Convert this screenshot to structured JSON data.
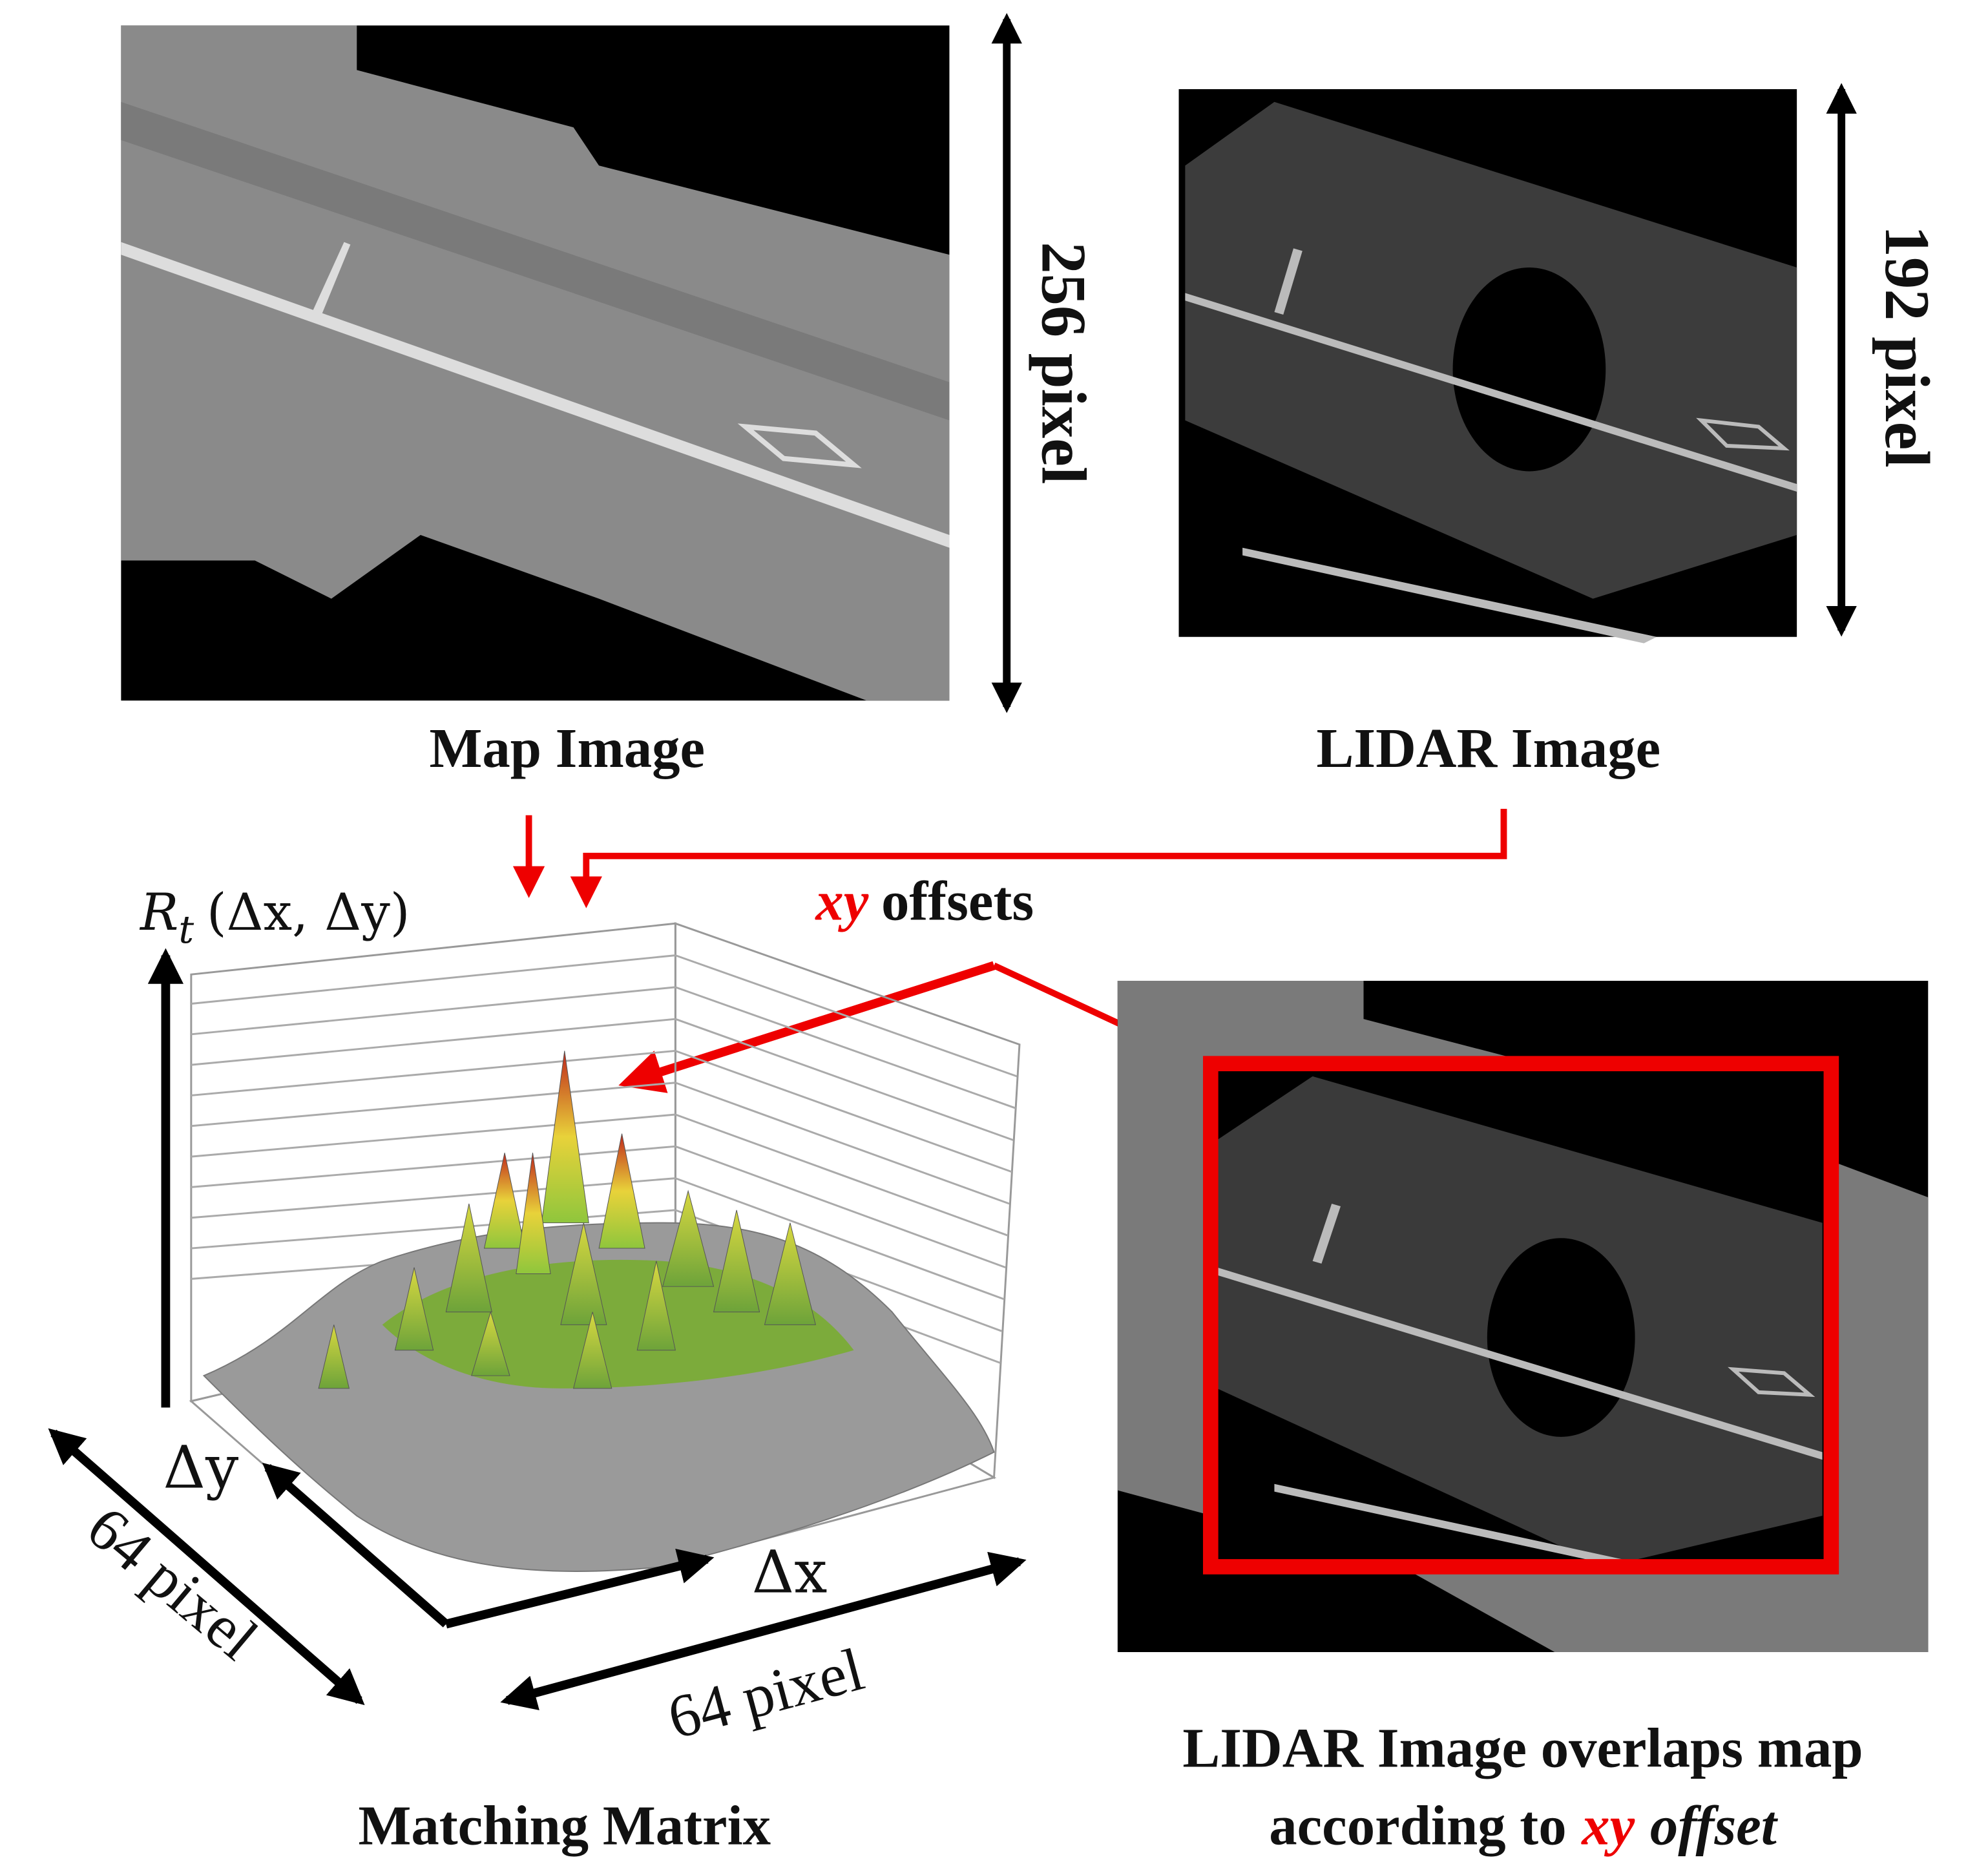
{
  "images": {
    "map": {
      "caption": "Map Image",
      "height_label": "256 pixel"
    },
    "lidar": {
      "caption": "LIDAR Image",
      "height_label": "192 pixel"
    },
    "overlap": {
      "caption_line1": "LIDAR Image overlaps map",
      "caption_line2_prefix": "according to",
      "caption_line2_highlight": "xy",
      "caption_line2_suffix": "offset"
    }
  },
  "matching_matrix": {
    "caption": "Matching Matrix",
    "z_label_symbol": "R",
    "z_label_subscript": "t",
    "z_label_args": "(Δx, Δy)",
    "x_axis_label": "Δx",
    "y_axis_label": "Δy",
    "x_size_label": "64 pixel",
    "y_size_label": "64 pixel"
  },
  "offsets_label": {
    "highlight": "xy",
    "text": "offsets"
  }
}
